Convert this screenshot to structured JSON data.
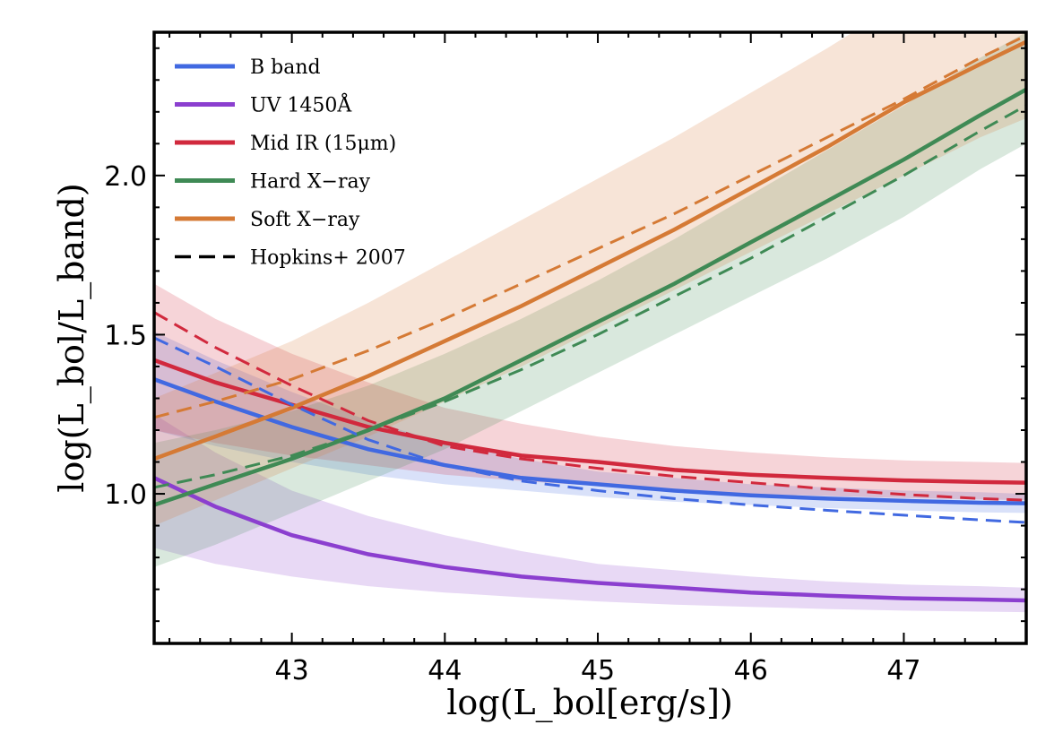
{
  "chart_data": {
    "type": "line",
    "xlabel": "log(L_bol[erg/s])",
    "ylabel": "log(L_bol/L_band)",
    "xlim": [
      42.1,
      47.8
    ],
    "ylim": [
      0.53,
      2.45
    ],
    "xticks": [
      43,
      44,
      45,
      46,
      47
    ],
    "yticks": [
      1.0,
      1.5,
      2.0
    ],
    "legend_position": "top-left",
    "grid": false,
    "series": [
      {
        "name": "B band",
        "color": "#4169e1",
        "style": "solid",
        "x": [
          42.1,
          42.5,
          43.0,
          43.5,
          44.0,
          44.5,
          45.0,
          45.5,
          46.0,
          46.5,
          47.0,
          47.5,
          47.8
        ],
        "values": [
          1.36,
          1.29,
          1.21,
          1.14,
          1.09,
          1.05,
          1.03,
          1.01,
          0.995,
          0.985,
          0.978,
          0.972,
          0.97
        ],
        "band_upper": [
          1.51,
          1.42,
          1.32,
          1.23,
          1.16,
          1.11,
          1.07,
          1.05,
          1.03,
          1.02,
          1.01,
          1.005,
          1.0
        ],
        "band_lower": [
          1.2,
          1.15,
          1.1,
          1.06,
          1.03,
          1.01,
          0.99,
          0.975,
          0.965,
          0.955,
          0.948,
          0.942,
          0.94
        ]
      },
      {
        "name": "UV 1450Å",
        "color": "#8b3fcf",
        "style": "solid",
        "x": [
          42.1,
          42.5,
          43.0,
          43.5,
          44.0,
          44.5,
          45.0,
          45.5,
          46.0,
          46.5,
          47.0,
          47.5,
          47.8
        ],
        "values": [
          1.05,
          0.96,
          0.87,
          0.81,
          0.77,
          0.74,
          0.72,
          0.705,
          0.69,
          0.68,
          0.672,
          0.668,
          0.665
        ],
        "band_upper": [
          1.25,
          1.13,
          1.01,
          0.93,
          0.87,
          0.82,
          0.78,
          0.76,
          0.74,
          0.725,
          0.715,
          0.71,
          0.705
        ],
        "band_lower": [
          0.83,
          0.78,
          0.74,
          0.71,
          0.69,
          0.675,
          0.662,
          0.652,
          0.645,
          0.638,
          0.633,
          0.63,
          0.628
        ]
      },
      {
        "name": "Mid IR (15μm)",
        "color": "#d1293d",
        "style": "solid",
        "x": [
          42.1,
          42.5,
          43.0,
          43.5,
          44.0,
          44.5,
          45.0,
          45.5,
          46.0,
          46.5,
          47.0,
          47.5,
          47.8
        ],
        "values": [
          1.42,
          1.35,
          1.28,
          1.21,
          1.16,
          1.12,
          1.1,
          1.075,
          1.06,
          1.05,
          1.042,
          1.037,
          1.035
        ],
        "band_upper": [
          1.66,
          1.55,
          1.44,
          1.35,
          1.27,
          1.22,
          1.18,
          1.15,
          1.13,
          1.115,
          1.105,
          1.1,
          1.097
        ],
        "band_lower": [
          1.2,
          1.16,
          1.12,
          1.09,
          1.06,
          1.04,
          1.025,
          1.01,
          1.0,
          0.993,
          0.987,
          0.982,
          0.98
        ]
      },
      {
        "name": "Hard X−ray",
        "color": "#3f8a55",
        "style": "solid",
        "x": [
          42.1,
          42.5,
          43.0,
          43.5,
          44.0,
          44.5,
          45.0,
          45.5,
          46.0,
          46.5,
          47.0,
          47.5,
          47.8
        ],
        "values": [
          0.965,
          1.03,
          1.11,
          1.2,
          1.3,
          1.42,
          1.54,
          1.66,
          1.79,
          1.92,
          2.05,
          2.19,
          2.27
        ],
        "band_upper": [
          1.16,
          1.2,
          1.26,
          1.34,
          1.44,
          1.55,
          1.67,
          1.8,
          1.94,
          2.08,
          2.22,
          2.37,
          2.45
        ],
        "band_lower": [
          0.77,
          0.84,
          0.94,
          1.04,
          1.14,
          1.26,
          1.38,
          1.5,
          1.62,
          1.74,
          1.87,
          2.02,
          2.1
        ]
      },
      {
        "name": "Soft X−ray",
        "color": "#d57a35",
        "style": "solid",
        "x": [
          42.1,
          42.5,
          43.0,
          43.5,
          44.0,
          44.5,
          45.0,
          45.5,
          46.0,
          46.5,
          47.0,
          47.5,
          47.8
        ],
        "values": [
          1.11,
          1.18,
          1.27,
          1.37,
          1.48,
          1.59,
          1.71,
          1.83,
          1.96,
          2.09,
          2.23,
          2.35,
          2.42
        ],
        "band_upper": [
          1.3,
          1.38,
          1.48,
          1.6,
          1.73,
          1.86,
          1.99,
          2.12,
          2.26,
          2.4,
          2.55,
          2.62,
          2.66
        ],
        "band_lower": [
          0.9,
          0.98,
          1.08,
          1.18,
          1.29,
          1.4,
          1.52,
          1.64,
          1.76,
          1.88,
          2.0,
          2.12,
          2.18
        ]
      },
      {
        "name": "",
        "color": "#4169e1",
        "style": "dashed",
        "x": [
          42.1,
          42.5,
          43.0,
          43.5,
          44.0,
          44.5,
          45.0,
          45.5,
          46.0,
          46.5,
          47.0,
          47.5,
          47.8
        ],
        "values": [
          1.49,
          1.4,
          1.28,
          1.17,
          1.09,
          1.04,
          1.01,
          0.985,
          0.965,
          0.948,
          0.933,
          0.918,
          0.91
        ]
      },
      {
        "name": "",
        "color": "#d1293d",
        "style": "dashed",
        "x": [
          42.1,
          42.5,
          43.0,
          43.5,
          44.0,
          44.5,
          45.0,
          45.5,
          46.0,
          46.5,
          47.0,
          47.5,
          47.8
        ],
        "values": [
          1.57,
          1.46,
          1.34,
          1.23,
          1.15,
          1.11,
          1.08,
          1.055,
          1.035,
          1.015,
          0.998,
          0.985,
          0.98
        ]
      },
      {
        "name": "",
        "color": "#3f8a55",
        "style": "dashed",
        "x": [
          42.1,
          42.5,
          43.0,
          43.5,
          44.0,
          44.5,
          45.0,
          45.5,
          46.0,
          46.5,
          47.0,
          47.5,
          47.8
        ],
        "values": [
          1.02,
          1.06,
          1.12,
          1.2,
          1.29,
          1.39,
          1.5,
          1.62,
          1.74,
          1.87,
          2.0,
          2.14,
          2.22
        ]
      },
      {
        "name": "",
        "color": "#d57a35",
        "style": "dashed",
        "x": [
          42.1,
          42.5,
          43.0,
          43.5,
          44.0,
          44.5,
          45.0,
          45.5,
          46.0,
          46.5,
          47.0,
          47.5,
          47.8
        ],
        "values": [
          1.24,
          1.29,
          1.36,
          1.45,
          1.55,
          1.66,
          1.77,
          1.88,
          2.0,
          2.12,
          2.24,
          2.37,
          2.44
        ]
      }
    ],
    "legend": [
      {
        "label": "B band",
        "color": "#4169e1",
        "style": "solid"
      },
      {
        "label": "UV 1450Å",
        "color": "#8b3fcf",
        "style": "solid"
      },
      {
        "label": "Mid IR (15μm)",
        "color": "#d1293d",
        "style": "solid"
      },
      {
        "label": "Hard X−ray",
        "color": "#3f8a55",
        "style": "solid"
      },
      {
        "label": "Soft X−ray",
        "color": "#d57a35",
        "style": "solid"
      },
      {
        "label": "Hopkins+ 2007",
        "color": "#000000",
        "style": "dashed"
      }
    ]
  }
}
